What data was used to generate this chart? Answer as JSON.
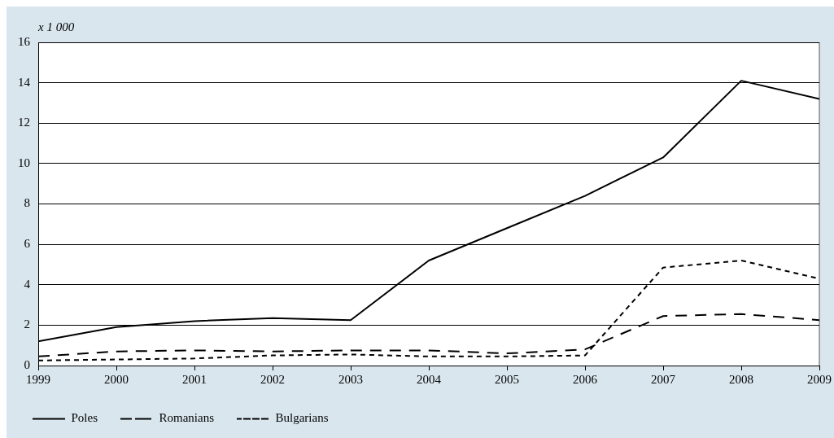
{
  "chart_data": {
    "type": "line",
    "ylabel": "x 1 000",
    "x": [
      1999,
      2000,
      2001,
      2002,
      2003,
      2004,
      2005,
      2006,
      2007,
      2008,
      2009
    ],
    "xlim": [
      1999,
      2009
    ],
    "xticks": [
      1999,
      2000,
      2001,
      2002,
      2003,
      2004,
      2005,
      2006,
      2007,
      2008,
      2009
    ],
    "ylim": [
      0,
      16
    ],
    "yticks": [
      0,
      2,
      4,
      6,
      8,
      10,
      12,
      14,
      16
    ],
    "grid": "y",
    "legend": "bottom",
    "marker": "none",
    "series": [
      {
        "name": "Poles",
        "color": "#000000",
        "line_style": "solid",
        "values": [
          1.2,
          1.9,
          2.2,
          2.35,
          2.25,
          5.2,
          6.8,
          8.4,
          10.3,
          14.1,
          13.2
        ]
      },
      {
        "name": "Romanians",
        "color": "#000000",
        "line_style": "dashed",
        "values": [
          0.45,
          0.7,
          0.75,
          0.7,
          0.75,
          0.75,
          0.6,
          0.8,
          2.45,
          2.55,
          2.25
        ]
      },
      {
        "name": "Bulgarians",
        "color": "#000000",
        "line_style": "dotted",
        "values": [
          0.25,
          0.3,
          0.35,
          0.5,
          0.55,
          0.45,
          0.45,
          0.5,
          4.85,
          5.2,
          4.3
        ]
      }
    ]
  }
}
